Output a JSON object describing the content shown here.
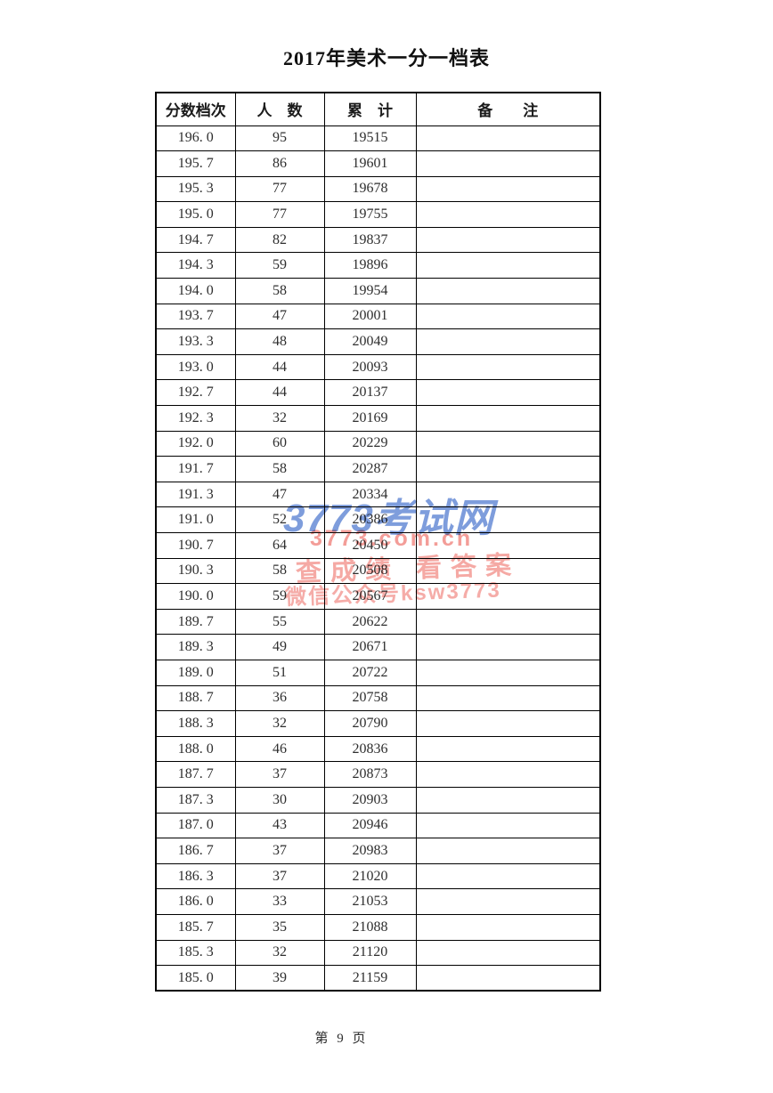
{
  "page": {
    "title": "2017年美术一分一档表",
    "footer": "第 9 页",
    "background_color": "#ffffff",
    "text_color": "#2e2e2e",
    "border_color": "#000000"
  },
  "watermark": {
    "logo_text": "3773考试网",
    "url_text": "3773.com.cn",
    "slogan_text": "查成绩 看答案",
    "wechat_text": "微信公众号ksw3773",
    "logo_color": "#678cd6",
    "red_color": "#f0847e"
  },
  "table": {
    "headers": {
      "score": "分数档次",
      "count": "人　数",
      "cumulative": "累　计",
      "remark": "备　　注"
    },
    "rows": [
      {
        "score": "196. 0",
        "count": "95",
        "cumulative": "19515",
        "remark": ""
      },
      {
        "score": "195. 7",
        "count": "86",
        "cumulative": "19601",
        "remark": ""
      },
      {
        "score": "195. 3",
        "count": "77",
        "cumulative": "19678",
        "remark": ""
      },
      {
        "score": "195. 0",
        "count": "77",
        "cumulative": "19755",
        "remark": ""
      },
      {
        "score": "194. 7",
        "count": "82",
        "cumulative": "19837",
        "remark": ""
      },
      {
        "score": "194. 3",
        "count": "59",
        "cumulative": "19896",
        "remark": ""
      },
      {
        "score": "194. 0",
        "count": "58",
        "cumulative": "19954",
        "remark": ""
      },
      {
        "score": "193. 7",
        "count": "47",
        "cumulative": "20001",
        "remark": ""
      },
      {
        "score": "193. 3",
        "count": "48",
        "cumulative": "20049",
        "remark": ""
      },
      {
        "score": "193. 0",
        "count": "44",
        "cumulative": "20093",
        "remark": ""
      },
      {
        "score": "192. 7",
        "count": "44",
        "cumulative": "20137",
        "remark": ""
      },
      {
        "score": "192. 3",
        "count": "32",
        "cumulative": "20169",
        "remark": ""
      },
      {
        "score": "192. 0",
        "count": "60",
        "cumulative": "20229",
        "remark": ""
      },
      {
        "score": "191. 7",
        "count": "58",
        "cumulative": "20287",
        "remark": ""
      },
      {
        "score": "191. 3",
        "count": "47",
        "cumulative": "20334",
        "remark": ""
      },
      {
        "score": "191. 0",
        "count": "52",
        "cumulative": "20386",
        "remark": ""
      },
      {
        "score": "190. 7",
        "count": "64",
        "cumulative": "20450",
        "remark": ""
      },
      {
        "score": "190. 3",
        "count": "58",
        "cumulative": "20508",
        "remark": ""
      },
      {
        "score": "190. 0",
        "count": "59",
        "cumulative": "20567",
        "remark": ""
      },
      {
        "score": "189. 7",
        "count": "55",
        "cumulative": "20622",
        "remark": ""
      },
      {
        "score": "189. 3",
        "count": "49",
        "cumulative": "20671",
        "remark": ""
      },
      {
        "score": "189. 0",
        "count": "51",
        "cumulative": "20722",
        "remark": ""
      },
      {
        "score": "188. 7",
        "count": "36",
        "cumulative": "20758",
        "remark": ""
      },
      {
        "score": "188. 3",
        "count": "32",
        "cumulative": "20790",
        "remark": ""
      },
      {
        "score": "188. 0",
        "count": "46",
        "cumulative": "20836",
        "remark": ""
      },
      {
        "score": "187. 7",
        "count": "37",
        "cumulative": "20873",
        "remark": ""
      },
      {
        "score": "187. 3",
        "count": "30",
        "cumulative": "20903",
        "remark": ""
      },
      {
        "score": "187. 0",
        "count": "43",
        "cumulative": "20946",
        "remark": ""
      },
      {
        "score": "186. 7",
        "count": "37",
        "cumulative": "20983",
        "remark": ""
      },
      {
        "score": "186. 3",
        "count": "37",
        "cumulative": "21020",
        "remark": ""
      },
      {
        "score": "186. 0",
        "count": "33",
        "cumulative": "21053",
        "remark": ""
      },
      {
        "score": "185. 7",
        "count": "35",
        "cumulative": "21088",
        "remark": ""
      },
      {
        "score": "185. 3",
        "count": "32",
        "cumulative": "21120",
        "remark": ""
      },
      {
        "score": "185. 0",
        "count": "39",
        "cumulative": "21159",
        "remark": ""
      }
    ]
  }
}
